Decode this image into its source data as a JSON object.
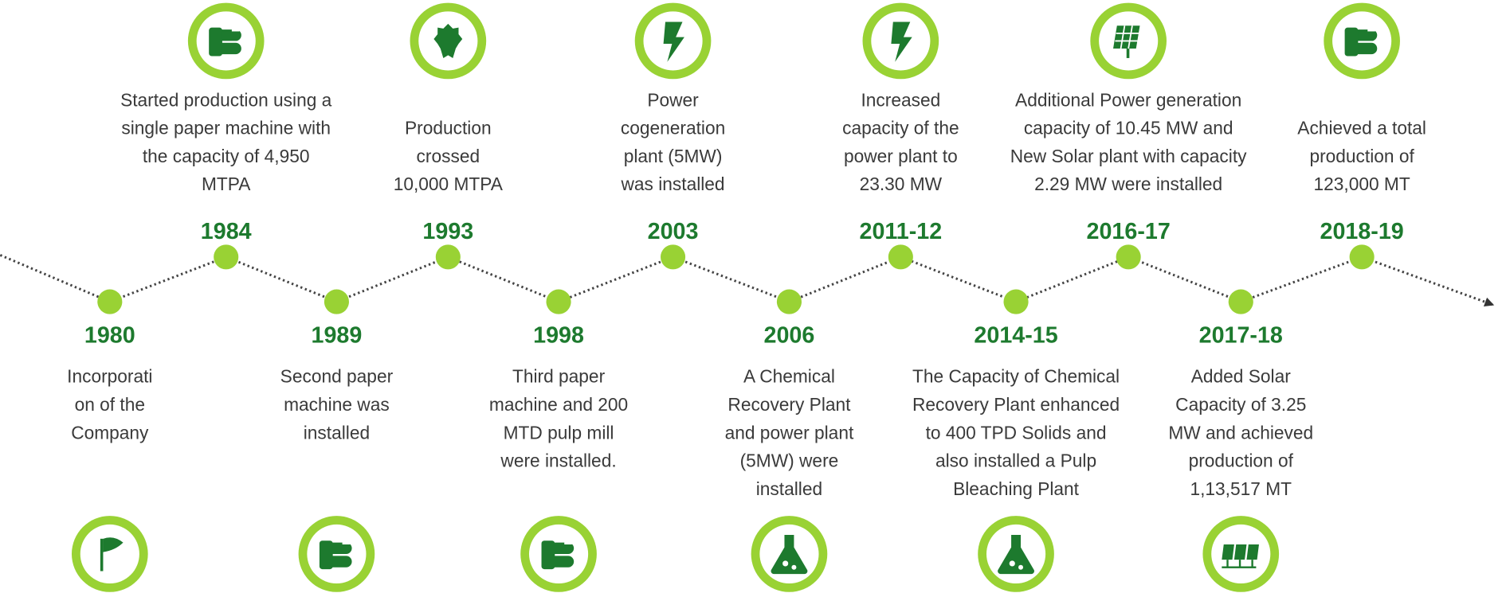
{
  "events": [
    {
      "year": "1980",
      "lines": [
        "Incorporati",
        "on of the",
        "Company"
      ]
    },
    {
      "year": "1984",
      "lines": [
        "Started production using a",
        "single paper machine with",
        "the capacity of 4,950",
        "MTPA"
      ]
    },
    {
      "year": "1989",
      "lines": [
        "Second paper",
        "machine was",
        "installed"
      ]
    },
    {
      "year": "1993",
      "lines": [
        "Production",
        "crossed",
        "10,000  MTPA"
      ]
    },
    {
      "year": "1998",
      "lines": [
        "Third paper",
        "machine and 200",
        "MTD pulp mill",
        "were installed."
      ]
    },
    {
      "year": "2003",
      "lines": [
        "Power",
        "cogeneration",
        "plant (5MW)",
        "was installed"
      ]
    },
    {
      "year": "2006",
      "lines": [
        "A Chemical",
        "Recovery Plant",
        "and power plant",
        "(5MW) were",
        "installed"
      ]
    },
    {
      "year": "2011-12",
      "lines": [
        "Increased",
        "capacity of the",
        "power plant to",
        "23.30  MW"
      ]
    },
    {
      "year": "2014-15",
      "lines": [
        "The Capacity of Chemical",
        "Recovery Plant enhanced",
        "to 400  TPD Solids and",
        "also installed a Pulp",
        "Bleaching Plant"
      ]
    },
    {
      "year": "2016-17",
      "lines": [
        "Additional Power generation",
        "capacity of 10.45  MW and",
        "New Solar plant with capacity",
        "2.29  MW were installed"
      ]
    },
    {
      "year": "2017-18",
      "lines": [
        "Added Solar",
        "Capacity of 3.25",
        "MW and achieved",
        "production of",
        "1,13,517  MT"
      ]
    },
    {
      "year": "2018-19",
      "lines": [
        "Achieved a total",
        "production of",
        "123,000  MT"
      ]
    }
  ]
}
